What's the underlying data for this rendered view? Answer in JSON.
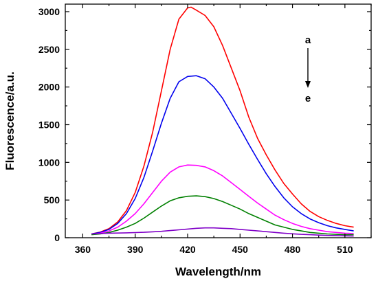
{
  "chart_data": {
    "type": "line",
    "title": "",
    "xlabel": "Wavelength/nm",
    "ylabel": "Fluorescence/a.u.",
    "xlim": [
      350,
      525
    ],
    "ylim": [
      0,
      3100
    ],
    "xticks": [
      360,
      390,
      420,
      450,
      480,
      510
    ],
    "yticks": [
      0,
      500,
      1000,
      1500,
      2000,
      2500,
      3000
    ],
    "grid": false,
    "legend": "none",
    "annotations": {
      "top_label": "a",
      "bottom_label": "e",
      "arrow": "down"
    },
    "series": [
      {
        "color": "#ff0000",
        "x": [
          365,
          370,
          375,
          380,
          385,
          390,
          395,
          400,
          405,
          410,
          415,
          420,
          422,
          425,
          430,
          435,
          440,
          445,
          450,
          455,
          460,
          465,
          470,
          475,
          480,
          485,
          490,
          495,
          500,
          505,
          510,
          515
        ],
        "y": [
          50,
          75,
          120,
          210,
          360,
          600,
          950,
          1400,
          1950,
          2500,
          2900,
          3050,
          3060,
          3020,
          2950,
          2800,
          2550,
          2250,
          1950,
          1600,
          1320,
          1100,
          900,
          720,
          580,
          450,
          350,
          280,
          230,
          190,
          160,
          140
        ]
      },
      {
        "color": "#0000ee",
        "x": [
          365,
          370,
          375,
          380,
          385,
          390,
          395,
          400,
          405,
          410,
          415,
          420,
          425,
          430,
          435,
          440,
          445,
          450,
          455,
          460,
          465,
          470,
          475,
          480,
          485,
          490,
          495,
          500,
          505,
          510,
          515
        ],
        "y": [
          50,
          70,
          110,
          190,
          320,
          520,
          800,
          1150,
          1520,
          1850,
          2070,
          2140,
          2150,
          2110,
          2000,
          1850,
          1650,
          1450,
          1240,
          1040,
          850,
          680,
          530,
          410,
          320,
          250,
          200,
          160,
          130,
          110,
          90
        ]
      },
      {
        "color": "#ff00ff",
        "x": [
          365,
          370,
          375,
          380,
          385,
          390,
          395,
          400,
          405,
          410,
          415,
          420,
          425,
          430,
          435,
          440,
          445,
          450,
          455,
          460,
          465,
          470,
          475,
          480,
          485,
          490,
          495,
          500,
          505,
          510,
          515
        ],
        "y": [
          45,
          60,
          90,
          140,
          220,
          320,
          450,
          600,
          750,
          870,
          940,
          965,
          960,
          940,
          890,
          820,
          730,
          640,
          550,
          460,
          380,
          300,
          240,
          190,
          150,
          120,
          100,
          80,
          70,
          60,
          55
        ]
      },
      {
        "color": "#008000",
        "x": [
          365,
          370,
          375,
          380,
          385,
          390,
          395,
          400,
          405,
          410,
          415,
          420,
          425,
          430,
          435,
          440,
          445,
          450,
          455,
          460,
          465,
          470,
          475,
          480,
          485,
          490,
          495,
          500,
          505,
          510,
          515
        ],
        "y": [
          40,
          50,
          70,
          100,
          140,
          190,
          260,
          340,
          420,
          490,
          530,
          550,
          555,
          545,
          520,
          480,
          430,
          380,
          320,
          270,
          220,
          170,
          140,
          110,
          90,
          70,
          60,
          50,
          45,
          40,
          40
        ]
      },
      {
        "color": "#8000c8",
        "x": [
          365,
          370,
          375,
          380,
          385,
          390,
          395,
          400,
          405,
          410,
          415,
          420,
          425,
          430,
          435,
          440,
          445,
          450,
          455,
          460,
          465,
          470,
          475,
          480,
          485,
          490,
          495,
          500,
          505,
          510,
          515
        ],
        "y": [
          50,
          55,
          60,
          62,
          65,
          68,
          72,
          78,
          85,
          95,
          105,
          115,
          125,
          130,
          130,
          125,
          120,
          110,
          100,
          90,
          80,
          70,
          60,
          52,
          45,
          40,
          35,
          30,
          28,
          25,
          22
        ]
      }
    ]
  }
}
